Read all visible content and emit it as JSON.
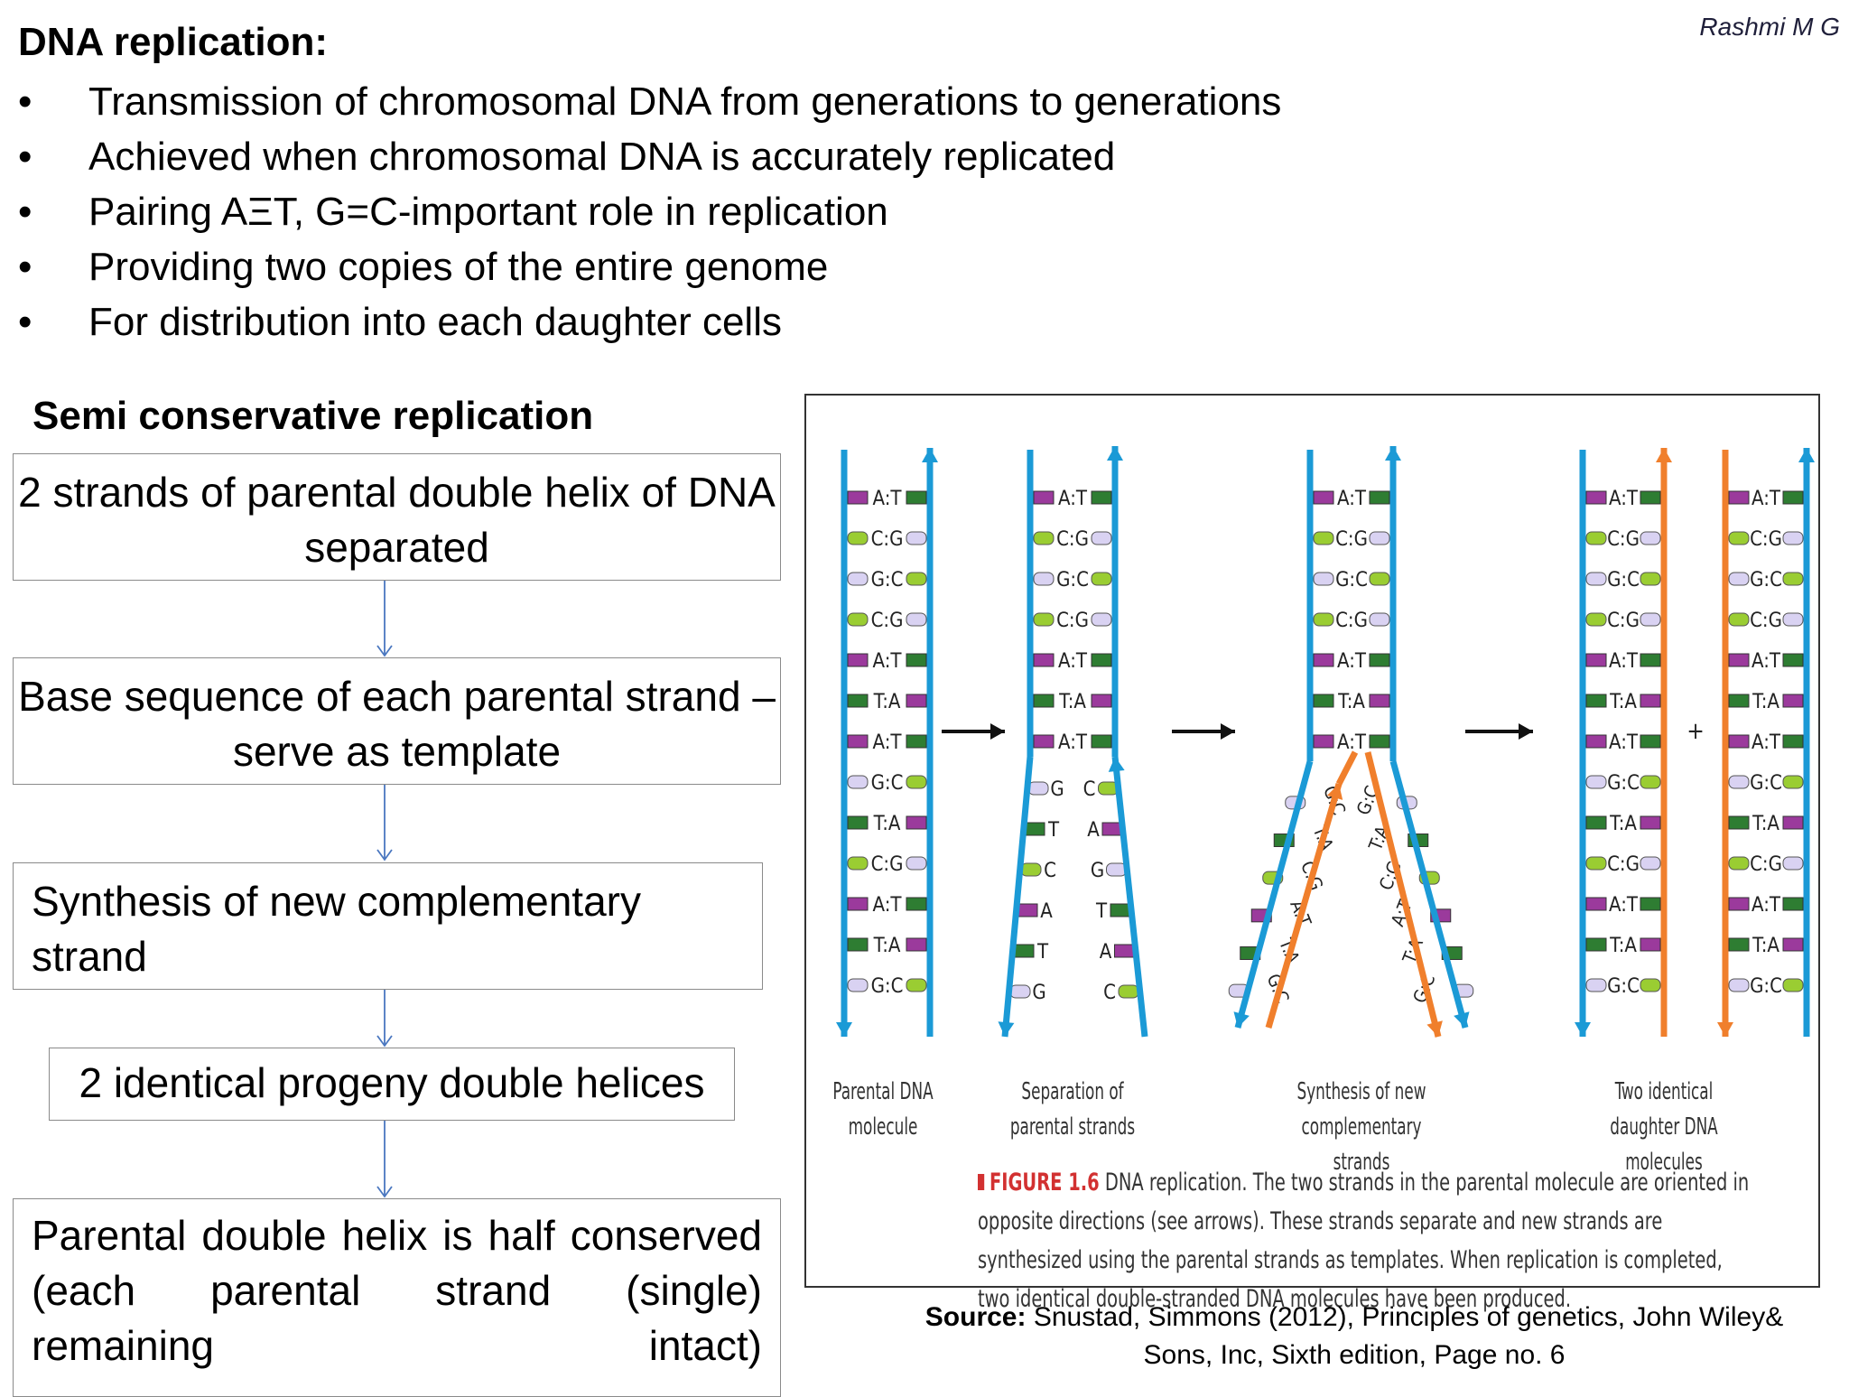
{
  "author": "Rashmi M G",
  "title": "DNA replication:",
  "bullets": [
    "Transmission of chromosomal DNA from generations to generations",
    "Achieved when chromosomal DNA is accurately replicated",
    "Pairing AΞT, G=C-important role in replication",
    "Providing two copies of the entire genome",
    "For distribution into each daughter cells"
  ],
  "bullet_symbol": "•",
  "subtitle": "Semi conservative replication",
  "flow": [
    "2 strands of parental double helix of DNA separated",
    "Base sequence of each parental strand –serve as template",
    "Synthesis of new complementary strand",
    "2 identical progeny double helices",
    "Parental double helix is half conserved (each parental strand (single) remaining intact)"
  ],
  "figure": {
    "stages": [
      "Parental DNA molecule",
      "Separation of parental strands",
      "Synthesis of new complementary strands",
      "Two identical daughter DNA molecules"
    ],
    "plus": "+",
    "caption_id": "FIGURE 1.6",
    "caption_text": "DNA replication. The two strands in the parental molecule are oriented in opposite directions (see arrows). These strands separate and new strands are synthesized using the parental strands as templates. When replication is completed, two identical double-stranded DNA molecules have been produced.",
    "pairs": [
      "A:T",
      "C:G",
      "G:C",
      "C:G",
      "A:T",
      "T:A",
      "A:T",
      "G:C",
      "T:A",
      "C:G",
      "A:T",
      "T:A",
      "G:C"
    ],
    "left_arm": [
      "G",
      "T",
      "C",
      "A",
      "T",
      "G"
    ],
    "right_arm": [
      "C",
      "A",
      "G",
      "T",
      "A",
      "C"
    ],
    "syn_left": [
      "G:C",
      "T:A",
      "C:G",
      "A:T",
      "T:A",
      "G:C"
    ],
    "syn_right": [
      "G:C",
      "T:A",
      "C:G",
      "A:T",
      "T:A",
      "G:C"
    ]
  },
  "colors": {
    "strand_blue": "#1b9ad6",
    "strand_orange": "#f07f2c",
    "A": "#9b3a9c",
    "T": "#2e7d32",
    "C": "#9acd32",
    "G": "#d9d2f2"
  },
  "source": {
    "label": "Source:",
    "line1": "Snustad, Simmons (2012), Principles of genetics, John Wiley&",
    "line2": "Sons, Inc, Sixth edition, Page no. 6"
  }
}
